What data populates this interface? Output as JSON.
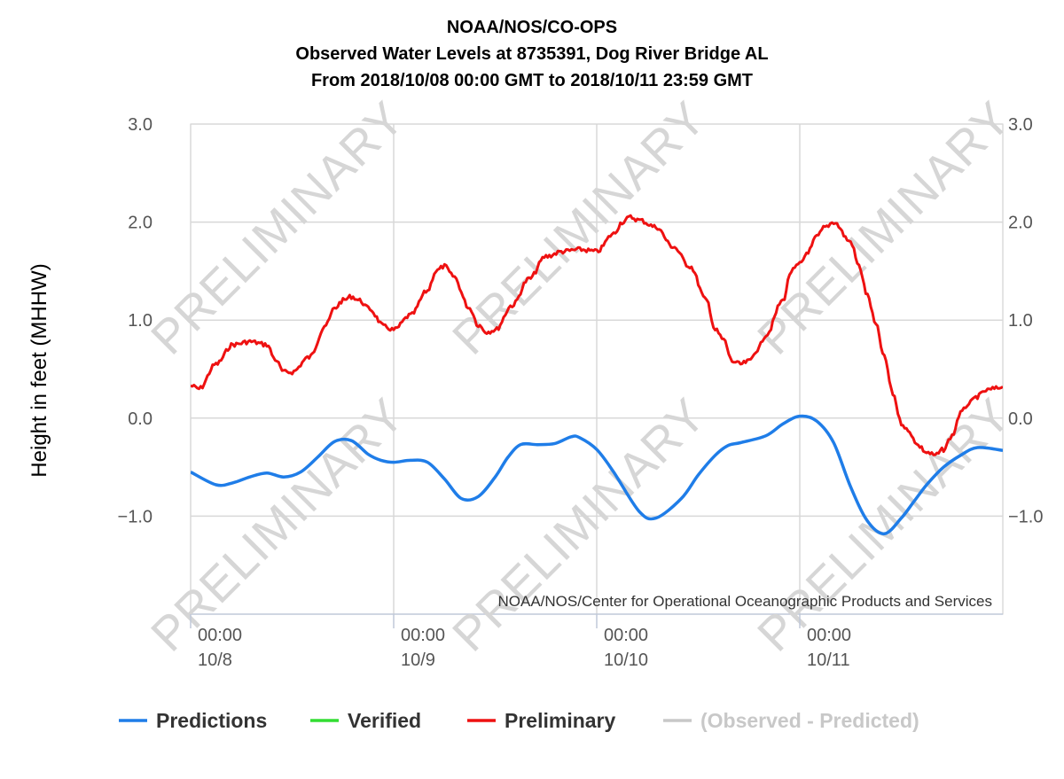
{
  "chart_data": {
    "type": "line",
    "title": [
      "NOAA/NOS/CO-OPS",
      "Observed Water Levels at 8735391, Dog River Bridge AL",
      "From 2018/10/08 00:00 GMT to 2018/10/11 23:59 GMT"
    ],
    "ylabel": "Height in feet (MHHW)",
    "ylim": [
      -2.0,
      3.0
    ],
    "xlim": [
      0,
      96
    ],
    "y_ticks": [
      "3.0",
      "2.0",
      "1.0",
      "0.0",
      "−1.0"
    ],
    "y_tick_values": [
      3,
      2,
      1,
      0,
      -1
    ],
    "x_ticks": [
      {
        "x": 0,
        "time": "00:00",
        "date": "10/8"
      },
      {
        "x": 24,
        "time": "00:00",
        "date": "10/9"
      },
      {
        "x": 48,
        "time": "00:00",
        "date": "10/10"
      },
      {
        "x": 72,
        "time": "00:00",
        "date": "10/11"
      }
    ],
    "grid": true,
    "legend_position": "bottom",
    "credit": "NOAA/NOS/Center for Operational Oceanographic Products and Services",
    "watermark": "PRELIMINARY",
    "series": [
      {
        "name": "Predictions",
        "color": "#1f7de8",
        "x": [
          0,
          3,
          5,
          7,
          9,
          11,
          13,
          15,
          17,
          19,
          21,
          22.5,
          24,
          26,
          28,
          30,
          32,
          34,
          36,
          37.5,
          39,
          41,
          43,
          45,
          46,
          48,
          50,
          53,
          55,
          58,
          60,
          62,
          63.5,
          65,
          68,
          70,
          72,
          74,
          76,
          78,
          80,
          82,
          84,
          85.5,
          87,
          89,
          91,
          93,
          96
        ],
        "y": [
          -0.55,
          -0.68,
          -0.66,
          -0.6,
          -0.56,
          -0.6,
          -0.55,
          -0.4,
          -0.24,
          -0.23,
          -0.37,
          -0.43,
          -0.45,
          -0.43,
          -0.45,
          -0.62,
          -0.82,
          -0.8,
          -0.6,
          -0.4,
          -0.27,
          -0.27,
          -0.26,
          -0.19,
          -0.2,
          -0.32,
          -0.55,
          -0.95,
          -1.02,
          -0.82,
          -0.58,
          -0.38,
          -0.28,
          -0.25,
          -0.18,
          -0.06,
          0.02,
          -0.03,
          -0.25,
          -0.7,
          -1.05,
          -1.18,
          -1.02,
          -0.85,
          -0.68,
          -0.5,
          -0.38,
          -0.3,
          -0.33
        ]
      },
      {
        "name": "Verified",
        "color": "#33dd33",
        "x": [],
        "y": []
      },
      {
        "name": "Preliminary",
        "color": "#ee1111",
        "x": [
          0,
          1,
          3,
          5,
          7,
          9,
          10,
          11,
          12,
          14,
          16,
          17,
          18,
          19,
          20,
          21,
          23,
          24,
          26,
          28,
          29,
          30,
          31,
          33,
          34,
          35,
          36,
          38,
          40,
          42,
          44,
          46,
          48,
          50,
          51,
          52,
          53,
          55,
          57,
          59,
          61,
          62,
          63,
          64,
          65,
          66,
          67,
          68,
          70,
          71,
          72,
          73,
          74,
          75,
          76,
          78,
          79,
          80,
          81,
          82,
          83,
          84,
          85,
          86,
          87,
          88,
          89,
          90,
          91,
          92,
          93,
          94,
          95,
          96
        ],
        "y": [
          0.33,
          0.3,
          0.55,
          0.75,
          0.78,
          0.75,
          0.6,
          0.47,
          0.47,
          0.62,
          0.95,
          1.12,
          1.2,
          1.24,
          1.2,
          1.12,
          0.93,
          0.9,
          1.05,
          1.3,
          1.5,
          1.55,
          1.45,
          1.12,
          0.95,
          0.88,
          0.9,
          1.15,
          1.42,
          1.65,
          1.7,
          1.72,
          1.7,
          1.88,
          2.0,
          2.05,
          2.02,
          1.95,
          1.75,
          1.55,
          1.2,
          0.9,
          0.8,
          0.58,
          0.55,
          0.58,
          0.7,
          0.85,
          1.2,
          1.5,
          1.57,
          1.7,
          1.85,
          1.95,
          2.0,
          1.8,
          1.55,
          1.25,
          0.95,
          0.62,
          0.25,
          -0.05,
          -0.15,
          -0.28,
          -0.35,
          -0.38,
          -0.32,
          -0.18,
          0.05,
          0.15,
          0.22,
          0.28,
          0.3,
          0.32
        ]
      },
      {
        "name": "(Observed - Predicted)",
        "color": "#c8c8c8",
        "x": [],
        "y": []
      }
    ]
  }
}
